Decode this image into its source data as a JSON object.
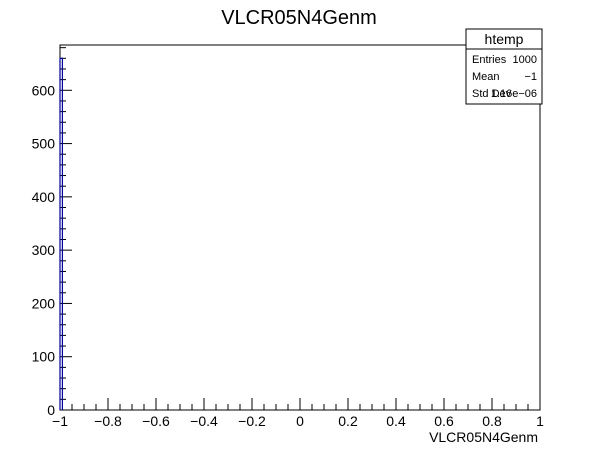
{
  "chart_data": {
    "type": "bar",
    "title": "VLCR05N4Genm",
    "xlabel": "VLCR05N4Genm",
    "ylabel": "",
    "xlim": [
      -1,
      1
    ],
    "ylim": [
      0,
      685
    ],
    "x_ticks": [
      -1,
      -0.8,
      -0.6,
      -0.4,
      -0.2,
      0,
      0.2,
      0.4,
      0.6,
      0.8,
      1
    ],
    "x_tick_labels": [
      "−1",
      "−0.8",
      "−0.6",
      "−0.4",
      "−0.2",
      "0",
      "0.2",
      "0.4",
      "0.6",
      "0.8",
      "1"
    ],
    "y_ticks": [
      0,
      100,
      200,
      300,
      400,
      500,
      600
    ],
    "y_tick_labels": [
      "0",
      "100",
      "200",
      "300",
      "400",
      "500",
      "600"
    ],
    "bins": [
      {
        "x_low": -1.0,
        "x_high": -0.99,
        "value": 660
      }
    ],
    "stats_box": {
      "title": "htemp",
      "rows": [
        {
          "label": "Entries",
          "value": "1000"
        },
        {
          "label": "Mean",
          "value": "−1"
        },
        {
          "label": "Std Dev",
          "value": "1.16e−06"
        }
      ]
    },
    "colors": {
      "line": "#000099",
      "frame": "#000000",
      "background": "#ffffff"
    },
    "grid": false,
    "legend_position": "top-right"
  }
}
